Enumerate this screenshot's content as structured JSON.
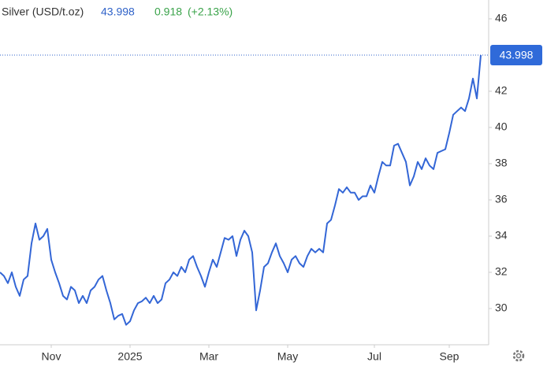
{
  "chart_data": {
    "type": "line",
    "title": "Silver (USD/t.oz)",
    "price": 43.998,
    "change": 0.918,
    "change_pct": "(+2.13%)",
    "xlim": [
      0,
      124
    ],
    "xticks": [
      {
        "value": 13,
        "label": "Nov"
      },
      {
        "value": 33,
        "label": "2025"
      },
      {
        "value": 53,
        "label": "Mar"
      },
      {
        "value": 73,
        "label": "May"
      },
      {
        "value": 95,
        "label": "Jul"
      },
      {
        "value": 114,
        "label": "Sep"
      }
    ],
    "ylim": [
      28,
      47.04
    ],
    "yticks": [
      30,
      32,
      34,
      36,
      38,
      40,
      42,
      46
    ],
    "color": "#3366d6",
    "values": [
      32.0,
      31.8,
      31.4,
      32.0,
      31.2,
      30.7,
      31.6,
      31.8,
      33.6,
      34.7,
      33.8,
      34.0,
      34.4,
      32.7,
      32.0,
      31.4,
      30.7,
      30.5,
      31.2,
      31.0,
      30.3,
      30.7,
      30.3,
      31.0,
      31.2,
      31.6,
      31.8,
      31.0,
      30.3,
      29.4,
      29.6,
      29.7,
      29.1,
      29.3,
      29.9,
      30.3,
      30.4,
      30.6,
      30.3,
      30.7,
      30.3,
      30.5,
      31.4,
      31.6,
      32.0,
      31.8,
      32.3,
      32.0,
      32.7,
      32.9,
      32.3,
      31.8,
      31.2,
      32.0,
      32.7,
      32.3,
      33.1,
      33.9,
      33.8,
      34.0,
      32.9,
      33.8,
      34.3,
      34.0,
      33.1,
      29.9,
      31.0,
      32.3,
      32.5,
      33.1,
      33.6,
      32.9,
      32.5,
      32.0,
      32.7,
      32.9,
      32.5,
      32.3,
      32.9,
      33.3,
      33.1,
      33.3,
      33.1,
      34.7,
      34.9,
      35.7,
      36.6,
      36.4,
      36.7,
      36.4,
      36.4,
      36.0,
      36.2,
      36.2,
      36.8,
      36.4,
      37.3,
      38.1,
      37.9,
      37.9,
      39.0,
      39.1,
      38.6,
      38.1,
      36.8,
      37.3,
      38.1,
      37.7,
      38.3,
      37.9,
      37.7,
      38.6,
      38.7,
      38.8,
      39.7,
      40.7,
      40.9,
      41.1,
      40.9,
      41.6,
      42.7,
      41.6,
      43.998
    ]
  }
}
